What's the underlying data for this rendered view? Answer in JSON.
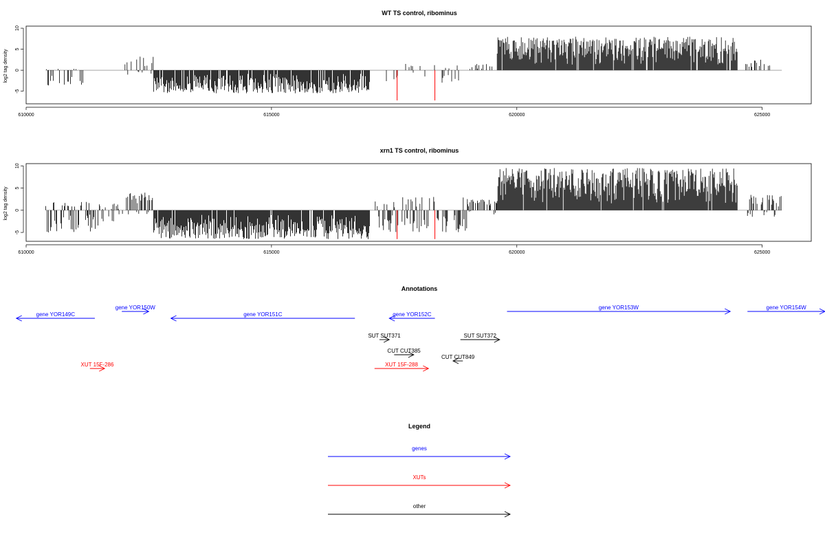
{
  "chart_data": [
    {
      "type": "bar",
      "title": "WT TS control, ribominus",
      "ylabel": "log2 tag density",
      "xlabel": "",
      "xlim": [
        610000,
        626000
      ],
      "ylim": [
        -8,
        10.5
      ],
      "xticks": [
        610000,
        615000,
        620000,
        625000
      ],
      "yticks": [
        -5,
        0,
        5,
        10
      ],
      "series": [
        {
          "color": "#000000",
          "segments": [
            {
              "x0": 610400,
              "x1": 611250,
              "min": -4,
              "max": 0.5,
              "density": 0.35,
              "seed": 11
            },
            {
              "x0": 612000,
              "x1": 612600,
              "min": -1.5,
              "max": 3.5,
              "density": 0.45,
              "seed": 12
            },
            {
              "x0": 612600,
              "x1": 617000,
              "min": -5.5,
              "max": 0,
              "density": 0.9,
              "seed": 13
            },
            {
              "x0": 617300,
              "x1": 619000,
              "min": -3,
              "max": 1.5,
              "density": 0.2,
              "seed": 14
            },
            {
              "x0": 619000,
              "x1": 619600,
              "min": 0,
              "max": 1.5,
              "density": 0.15,
              "seed": 15
            },
            {
              "x0": 619600,
              "x1": 624500,
              "min": 0,
              "max": 8,
              "density": 0.95,
              "seed": 16
            },
            {
              "x0": 624650,
              "x1": 625200,
              "min": 0,
              "max": 2.5,
              "density": 0.3,
              "seed": 17
            }
          ]
        },
        {
          "color": "#ff0000",
          "marks": [
            {
              "x": 617560,
              "y": -7.2
            },
            {
              "x": 618330,
              "y": -7.2
            }
          ]
        }
      ]
    },
    {
      "type": "bar",
      "title": "xrn1 TS control, ribominus",
      "ylabel": "log2 tag density",
      "xlabel": "",
      "xlim": [
        610000,
        626000
      ],
      "ylim": [
        -7,
        10.5
      ],
      "xticks": [
        610000,
        615000,
        620000,
        625000
      ],
      "yticks": [
        -5,
        0,
        5,
        10
      ],
      "series": [
        {
          "color": "#000000",
          "segments": [
            {
              "x0": 610400,
              "x1": 611500,
              "min": -5,
              "max": 2,
              "density": 0.6,
              "seed": 21
            },
            {
              "x0": 611500,
              "x1": 612000,
              "min": -2.5,
              "max": 1.5,
              "density": 0.3,
              "seed": 22
            },
            {
              "x0": 612000,
              "x1": 612600,
              "min": -1,
              "max": 4,
              "density": 0.6,
              "seed": 23
            },
            {
              "x0": 612600,
              "x1": 617000,
              "min": -6.5,
              "max": 0,
              "density": 0.95,
              "seed": 24
            },
            {
              "x0": 617100,
              "x1": 619000,
              "min": -5,
              "max": 3,
              "density": 0.55,
              "seed": 25
            },
            {
              "x0": 619000,
              "x1": 619600,
              "min": -1,
              "max": 2.5,
              "density": 0.5,
              "seed": 26
            },
            {
              "x0": 619600,
              "x1": 624500,
              "min": 0,
              "max": 9.5,
              "density": 0.97,
              "seed": 27
            },
            {
              "x0": 624700,
              "x1": 625400,
              "min": -1.5,
              "max": 3.5,
              "density": 0.5,
              "seed": 28
            }
          ]
        },
        {
          "color": "#ff0000",
          "marks": [
            {
              "x": 617560,
              "y": -6.5
            },
            {
              "x": 618330,
              "y": -6.5
            }
          ]
        }
      ]
    }
  ],
  "annotations": {
    "title": "Annotations",
    "items": [
      {
        "label": "gene YOR149C",
        "start": 611400,
        "end": 609800,
        "row": 2,
        "color": "#0000ff"
      },
      {
        "label": "gene YOR150W",
        "start": 611950,
        "end": 612500,
        "row": 1,
        "color": "#0000ff"
      },
      {
        "label": "gene YOR151C",
        "start": 616700,
        "end": 612950,
        "row": 2,
        "color": "#0000ff"
      },
      {
        "label": "gene YOR152C",
        "start": 618330,
        "end": 617400,
        "row": 2,
        "color": "#0000ff"
      },
      {
        "label": "gene YOR153W",
        "start": 619800,
        "end": 624350,
        "row": 1,
        "color": "#0000ff"
      },
      {
        "label": "gene YOR154W",
        "start": 624700,
        "end": 627000,
        "row": 1,
        "color": "#0000ff"
      },
      {
        "label": "SUT SUT371",
        "start": 617200,
        "end": 617400,
        "row": 3,
        "color": "#000000"
      },
      {
        "label": "SUT SUT372",
        "start": 618850,
        "end": 619650,
        "row": 3,
        "color": "#000000"
      },
      {
        "label": "CUT CUT385",
        "start": 617500,
        "end": 617900,
        "row": 4,
        "color": "#000000"
      },
      {
        "label": "CUT CUT849",
        "start": 618900,
        "end": 618700,
        "row": 5,
        "color": "#000000"
      },
      {
        "label": "XUT 15F-286",
        "start": 611300,
        "end": 611600,
        "row": 6,
        "color": "#ff0000"
      },
      {
        "label": "XUT 15F-288",
        "start": 617100,
        "end": 618200,
        "row": 6,
        "color": "#ff0000"
      }
    ]
  },
  "legend": {
    "title": "Legend",
    "items": [
      {
        "label": "genes",
        "color": "#0000ff"
      },
      {
        "label": "XUTs",
        "color": "#ff0000"
      },
      {
        "label": "other",
        "color": "#000000"
      }
    ]
  }
}
